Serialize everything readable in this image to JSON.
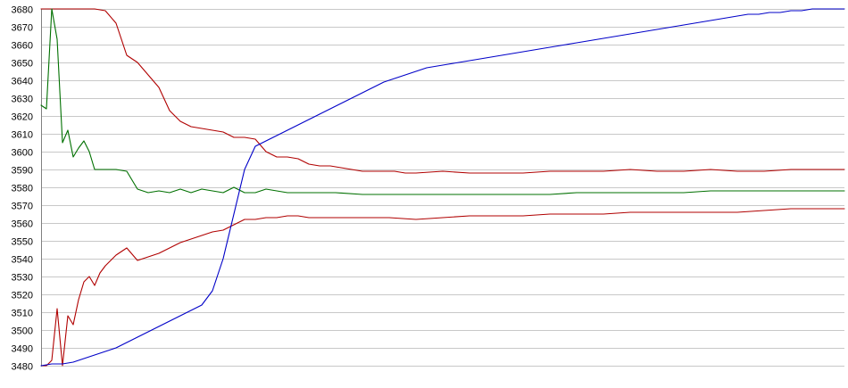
{
  "chart_data": {
    "type": "line",
    "title": "",
    "xlabel": "",
    "ylabel": "",
    "ylim": [
      3480,
      3680
    ],
    "xlim": [
      0,
      150
    ],
    "y_ticks": [
      3480,
      3490,
      3500,
      3510,
      3520,
      3530,
      3540,
      3550,
      3560,
      3570,
      3580,
      3590,
      3600,
      3610,
      3620,
      3630,
      3640,
      3650,
      3660,
      3670,
      3680
    ],
    "grid": true,
    "legend": "none",
    "series": [
      {
        "color": "#b00000",
        "x": [
          0,
          2,
          3,
          4,
          5,
          6,
          7,
          8,
          9,
          10,
          12,
          14,
          16,
          18,
          20,
          22,
          24,
          26,
          28,
          30,
          32,
          34,
          36,
          38,
          40,
          42,
          44,
          46,
          48,
          50,
          52,
          54,
          56,
          58,
          60,
          62,
          64,
          66,
          68,
          70,
          75,
          80,
          85,
          90,
          95,
          100,
          105,
          110,
          115,
          120,
          125,
          130,
          135,
          140,
          145,
          150
        ],
        "values": [
          3680,
          3680,
          3680,
          3680,
          3680,
          3680,
          3680,
          3680,
          3680,
          3680,
          3679,
          3672,
          3654,
          3650,
          3643,
          3636,
          3623,
          3617,
          3614,
          3613,
          3612,
          3611,
          3608,
          3608,
          3607,
          3600,
          3597,
          3597,
          3596,
          3593,
          3592,
          3592,
          3591,
          3590,
          3589,
          3589,
          3589,
          3589,
          3588,
          3588,
          3589,
          3588,
          3588,
          3588,
          3589,
          3589,
          3589,
          3590,
          3589,
          3589,
          3590,
          3589,
          3589,
          3590,
          3590,
          3590
        ]
      },
      {
        "color": "#007000",
        "x": [
          0,
          1,
          2,
          3,
          4,
          5,
          6,
          7,
          8,
          9,
          10,
          12,
          14,
          16,
          18,
          20,
          22,
          24,
          26,
          28,
          30,
          32,
          34,
          36,
          38,
          40,
          42,
          44,
          46,
          48,
          50,
          55,
          60,
          65,
          70,
          75,
          80,
          85,
          90,
          95,
          100,
          105,
          110,
          115,
          120,
          125,
          130,
          135,
          140,
          145,
          150
        ],
        "values": [
          3626,
          3624,
          3680,
          3663,
          3605,
          3612,
          3597,
          3602,
          3606,
          3600,
          3590,
          3590,
          3590,
          3589,
          3579,
          3577,
          3578,
          3577,
          3579,
          3577,
          3579,
          3578,
          3577,
          3580,
          3577,
          3577,
          3579,
          3578,
          3577,
          3577,
          3577,
          3577,
          3576,
          3576,
          3576,
          3576,
          3576,
          3576,
          3576,
          3576,
          3577,
          3577,
          3577,
          3577,
          3577,
          3578,
          3578,
          3578,
          3578,
          3578,
          3578
        ]
      },
      {
        "color": "#b00000",
        "x": [
          0,
          1,
          2,
          3,
          4,
          5,
          6,
          7,
          8,
          9,
          10,
          11,
          12,
          14,
          16,
          18,
          20,
          22,
          24,
          26,
          28,
          30,
          32,
          34,
          36,
          38,
          40,
          42,
          44,
          46,
          48,
          50,
          55,
          60,
          65,
          70,
          75,
          80,
          85,
          90,
          95,
          100,
          105,
          110,
          115,
          120,
          125,
          130,
          135,
          140,
          145,
          150
        ],
        "values": [
          3480,
          3480,
          3483,
          3512,
          3480,
          3508,
          3503,
          3517,
          3527,
          3530,
          3525,
          3532,
          3536,
          3542,
          3546,
          3539,
          3541,
          3543,
          3546,
          3549,
          3551,
          3553,
          3555,
          3556,
          3559,
          3562,
          3562,
          3563,
          3563,
          3564,
          3564,
          3563,
          3563,
          3563,
          3563,
          3562,
          3563,
          3564,
          3564,
          3564,
          3565,
          3565,
          3565,
          3566,
          3566,
          3566,
          3566,
          3566,
          3567,
          3568,
          3568,
          3568
        ]
      },
      {
        "color": "#0000c8",
        "x": [
          0,
          2,
          4,
          6,
          8,
          10,
          12,
          14,
          16,
          18,
          20,
          22,
          24,
          26,
          28,
          30,
          32,
          34,
          36,
          38,
          40,
          42,
          44,
          46,
          48,
          50,
          52,
          54,
          56,
          58,
          60,
          62,
          64,
          66,
          68,
          70,
          72,
          74,
          76,
          78,
          80,
          82,
          84,
          86,
          88,
          90,
          92,
          94,
          96,
          98,
          100,
          102,
          104,
          106,
          108,
          110,
          112,
          114,
          116,
          118,
          120,
          122,
          124,
          126,
          128,
          130,
          132,
          134,
          136,
          138,
          140,
          142,
          144,
          146,
          148,
          150
        ],
        "values": [
          3480,
          3481,
          3481,
          3482,
          3484,
          3486,
          3488,
          3490,
          3493,
          3496,
          3499,
          3502,
          3505,
          3508,
          3511,
          3514,
          3522,
          3540,
          3565,
          3590,
          3603,
          3606,
          3609,
          3612,
          3615,
          3618,
          3621,
          3624,
          3627,
          3630,
          3633,
          3636,
          3639,
          3641,
          3643,
          3645,
          3647,
          3648,
          3649,
          3650,
          3651,
          3652,
          3653,
          3654,
          3655,
          3656,
          3657,
          3658,
          3659,
          3660,
          3661,
          3662,
          3663,
          3664,
          3665,
          3666,
          3667,
          3668,
          3669,
          3670,
          3671,
          3672,
          3673,
          3674,
          3675,
          3676,
          3677,
          3677,
          3678,
          3678,
          3679,
          3679,
          3680,
          3680,
          3680,
          3680
        ]
      }
    ]
  }
}
